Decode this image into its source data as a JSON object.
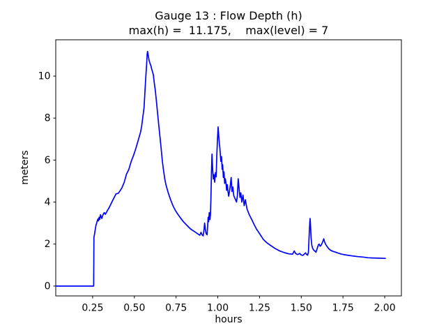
{
  "chart_data": {
    "type": "line",
    "title": "Gauge 13 : Flow Depth (h)",
    "subtitle": "max(h) =  11.175,    max(level) = 7",
    "xlabel": "hours",
    "ylabel": "meters",
    "max_h": 11.175,
    "max_level": 7,
    "grid": false,
    "legend": "none",
    "xlim": [
      0.029,
      2.1
    ],
    "ylim": [
      -0.47,
      11.73
    ],
    "xticks": {
      "values": [
        0.25,
        0.5,
        0.75,
        1.0,
        1.25,
        1.5,
        1.75,
        2.0
      ],
      "labels": [
        "0.25",
        "0.50",
        "0.75",
        "1.00",
        "1.25",
        "1.50",
        "1.75",
        "2.00"
      ]
    },
    "yticks": {
      "values": [
        0,
        2,
        4,
        6,
        8,
        10
      ],
      "labels": [
        "0",
        "2",
        "4",
        "6",
        "8",
        "10"
      ]
    },
    "series": [
      {
        "name": "flow depth h",
        "color": "#0000ff",
        "points": [
          [
            0.029,
            0
          ],
          [
            0.1,
            0
          ],
          [
            0.18,
            0
          ],
          [
            0.245,
            0
          ],
          [
            0.256,
            0
          ],
          [
            0.257,
            1.2
          ],
          [
            0.258,
            2.33
          ],
          [
            0.262,
            2.5
          ],
          [
            0.266,
            2.72
          ],
          [
            0.27,
            2.89
          ],
          [
            0.274,
            3.0
          ],
          [
            0.278,
            3.11
          ],
          [
            0.282,
            3.2
          ],
          [
            0.285,
            3.1
          ],
          [
            0.289,
            3.28
          ],
          [
            0.293,
            3.18
          ],
          [
            0.297,
            3.4
          ],
          [
            0.301,
            3.3
          ],
          [
            0.305,
            3.22
          ],
          [
            0.31,
            3.35
          ],
          [
            0.315,
            3.45
          ],
          [
            0.32,
            3.5
          ],
          [
            0.326,
            3.42
          ],
          [
            0.332,
            3.5
          ],
          [
            0.34,
            3.62
          ],
          [
            0.348,
            3.72
          ],
          [
            0.369,
            4.06
          ],
          [
            0.39,
            4.39
          ],
          [
            0.404,
            4.42
          ],
          [
            0.411,
            4.5
          ],
          [
            0.425,
            4.67
          ],
          [
            0.439,
            4.94
          ],
          [
            0.453,
            5.33
          ],
          [
            0.46,
            5.44
          ],
          [
            0.467,
            5.56
          ],
          [
            0.481,
            5.94
          ],
          [
            0.495,
            6.22
          ],
          [
            0.509,
            6.56
          ],
          [
            0.523,
            6.94
          ],
          [
            0.537,
            7.33
          ],
          [
            0.544,
            7.61
          ],
          [
            0.551,
            8.06
          ],
          [
            0.558,
            8.5
          ],
          [
            0.563,
            9.2
          ],
          [
            0.568,
            9.9
          ],
          [
            0.573,
            10.5
          ],
          [
            0.577,
            11.05
          ],
          [
            0.579,
            11.175
          ],
          [
            0.583,
            11.0
          ],
          [
            0.588,
            10.75
          ],
          [
            0.594,
            10.6
          ],
          [
            0.599,
            10.5
          ],
          [
            0.604,
            10.33
          ],
          [
            0.609,
            10.2
          ],
          [
            0.614,
            10.05
          ],
          [
            0.619,
            9.7
          ],
          [
            0.626,
            9.28
          ],
          [
            0.633,
            8.72
          ],
          [
            0.64,
            8.17
          ],
          [
            0.647,
            7.61
          ],
          [
            0.654,
            7.06
          ],
          [
            0.661,
            6.5
          ],
          [
            0.668,
            5.94
          ],
          [
            0.675,
            5.5
          ],
          [
            0.682,
            5.11
          ],
          [
            0.689,
            4.83
          ],
          [
            0.703,
            4.44
          ],
          [
            0.717,
            4.11
          ],
          [
            0.731,
            3.83
          ],
          [
            0.745,
            3.61
          ],
          [
            0.759,
            3.44
          ],
          [
            0.773,
            3.28
          ],
          [
            0.794,
            3.06
          ],
          [
            0.815,
            2.89
          ],
          [
            0.836,
            2.72
          ],
          [
            0.857,
            2.61
          ],
          [
            0.878,
            2.5
          ],
          [
            0.892,
            2.42
          ],
          [
            0.899,
            2.56
          ],
          [
            0.906,
            2.44
          ],
          [
            0.912,
            2.39
          ],
          [
            0.918,
            2.72
          ],
          [
            0.921,
            3.0
          ],
          [
            0.925,
            2.72
          ],
          [
            0.93,
            2.5
          ],
          [
            0.936,
            2.44
          ],
          [
            0.942,
            3.28
          ],
          [
            0.945,
            3.06
          ],
          [
            0.949,
            3.5
          ],
          [
            0.953,
            3.17
          ],
          [
            0.956,
            3.44
          ],
          [
            0.959,
            4.2
          ],
          [
            0.962,
            5.5
          ],
          [
            0.965,
            6.28
          ],
          [
            0.969,
            5.6
          ],
          [
            0.973,
            5.1
          ],
          [
            0.977,
            5.3
          ],
          [
            0.981,
            4.95
          ],
          [
            0.986,
            5.4
          ],
          [
            0.99,
            5.2
          ],
          [
            0.994,
            6.2
          ],
          [
            0.998,
            7.0
          ],
          [
            1.002,
            7.58
          ],
          [
            1.006,
            7.1
          ],
          [
            1.009,
            6.83
          ],
          [
            1.012,
            6.61
          ],
          [
            1.015,
            6.3
          ],
          [
            1.018,
            5.94
          ],
          [
            1.022,
            6.17
          ],
          [
            1.026,
            5.56
          ],
          [
            1.029,
            5.78
          ],
          [
            1.033,
            5.17
          ],
          [
            1.037,
            5.44
          ],
          [
            1.041,
            4.89
          ],
          [
            1.045,
            5.11
          ],
          [
            1.049,
            4.9
          ],
          [
            1.053,
            4.56
          ],
          [
            1.057,
            4.83
          ],
          [
            1.061,
            4.5
          ],
          [
            1.065,
            4.28
          ],
          [
            1.07,
            4.5
          ],
          [
            1.075,
            4.8
          ],
          [
            1.08,
            5.17
          ],
          [
            1.085,
            4.5
          ],
          [
            1.09,
            4.72
          ],
          [
            1.096,
            4.3
          ],
          [
            1.103,
            4.17
          ],
          [
            1.112,
            4.0
          ],
          [
            1.117,
            4.3
          ],
          [
            1.122,
            5.11
          ],
          [
            1.128,
            4.6
          ],
          [
            1.133,
            4.22
          ],
          [
            1.138,
            4.44
          ],
          [
            1.144,
            4.0
          ],
          [
            1.151,
            4.33
          ],
          [
            1.158,
            3.83
          ],
          [
            1.165,
            4.11
          ],
          [
            1.175,
            3.67
          ],
          [
            1.189,
            3.39
          ],
          [
            1.203,
            3.17
          ],
          [
            1.217,
            2.94
          ],
          [
            1.231,
            2.72
          ],
          [
            1.245,
            2.56
          ],
          [
            1.259,
            2.39
          ],
          [
            1.273,
            2.22
          ],
          [
            1.294,
            2.06
          ],
          [
            1.315,
            1.94
          ],
          [
            1.343,
            1.79
          ],
          [
            1.371,
            1.67
          ],
          [
            1.399,
            1.59
          ],
          [
            1.427,
            1.53
          ],
          [
            1.448,
            1.52
          ],
          [
            1.458,
            1.67
          ],
          [
            1.466,
            1.55
          ],
          [
            1.478,
            1.5
          ],
          [
            1.49,
            1.55
          ],
          [
            1.5,
            1.48
          ],
          [
            1.51,
            1.46
          ],
          [
            1.518,
            1.52
          ],
          [
            1.526,
            1.58
          ],
          [
            1.532,
            1.5
          ],
          [
            1.538,
            1.47
          ],
          [
            1.543,
            1.62
          ],
          [
            1.547,
            2.4
          ],
          [
            1.551,
            3.0
          ],
          [
            1.553,
            3.22
          ],
          [
            1.556,
            2.8
          ],
          [
            1.559,
            2.3
          ],
          [
            1.563,
            1.95
          ],
          [
            1.568,
            1.8
          ],
          [
            1.574,
            1.72
          ],
          [
            1.582,
            1.66
          ],
          [
            1.588,
            1.61
          ],
          [
            1.596,
            1.8
          ],
          [
            1.602,
            1.95
          ],
          [
            1.607,
            2.0
          ],
          [
            1.613,
            1.9
          ],
          [
            1.62,
            1.95
          ],
          [
            1.628,
            2.1
          ],
          [
            1.635,
            2.25
          ],
          [
            1.64,
            2.1
          ],
          [
            1.647,
            1.98
          ],
          [
            1.654,
            1.89
          ],
          [
            1.664,
            1.78
          ],
          [
            1.676,
            1.7
          ],
          [
            1.69,
            1.65
          ],
          [
            1.703,
            1.62
          ],
          [
            1.72,
            1.57
          ],
          [
            1.74,
            1.52
          ],
          [
            1.76,
            1.49
          ],
          [
            1.783,
            1.46
          ],
          [
            1.81,
            1.43
          ],
          [
            1.84,
            1.4
          ],
          [
            1.87,
            1.38
          ],
          [
            1.9,
            1.35
          ],
          [
            1.93,
            1.34
          ],
          [
            1.96,
            1.33
          ],
          [
            2.004,
            1.32
          ]
        ]
      }
    ],
    "colors": {
      "line": "#0000ff",
      "axes": "#000000",
      "background": "#ffffff"
    }
  }
}
